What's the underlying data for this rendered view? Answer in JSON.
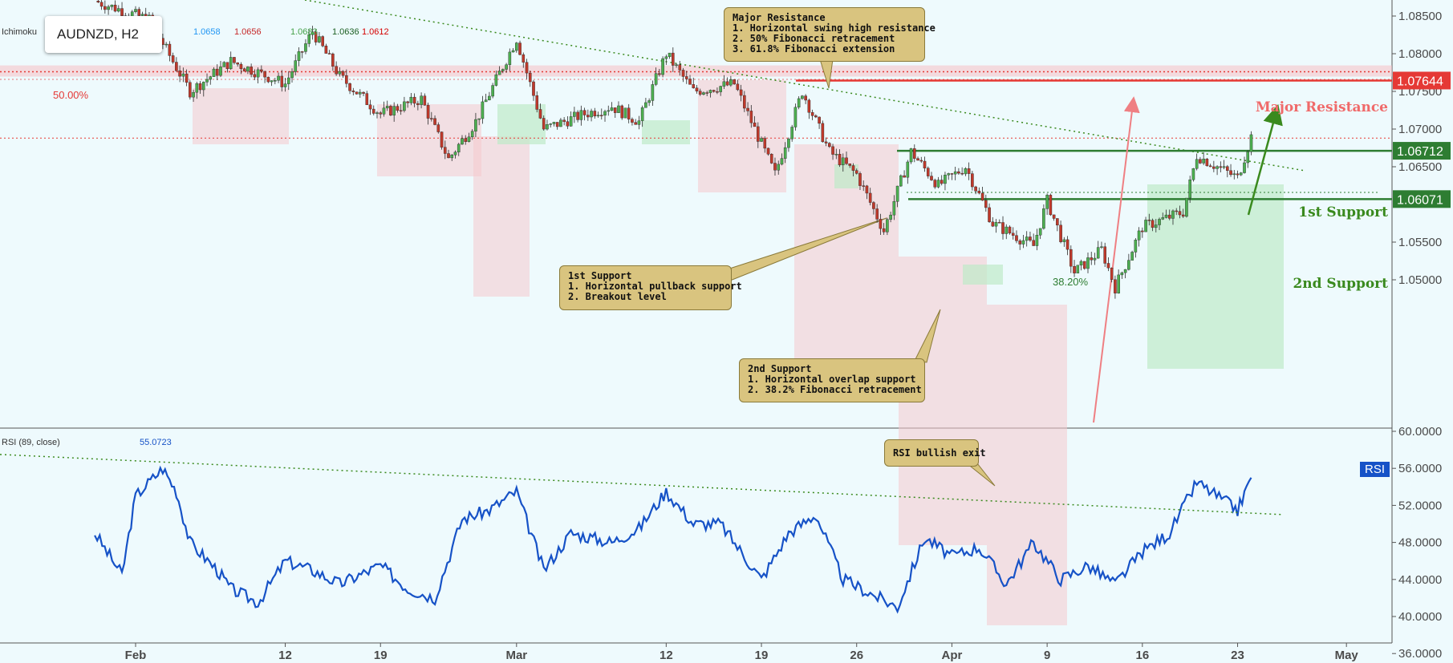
{
  "symbol": "AUDNZD, H2",
  "indicator_label": "Ichimoku",
  "ichimoku_values": [
    {
      "text": "1.0658",
      "color": "#2196f3"
    },
    {
      "text": "1.0656",
      "color": "#c62828"
    },
    {
      "text": "1.0683",
      "color": "#43a047"
    },
    {
      "text": "1.0636",
      "color": "#1b5e20"
    },
    {
      "text": "1.0612",
      "color": "#d50000"
    }
  ],
  "rsi_label": "RSI (89, close)",
  "rsi_value": "55.0723",
  "rsi_tag": "RSI",
  "price_axis": [
    "1.08500",
    "1.08000",
    "1.07500",
    "1.07000",
    "1.06500",
    "1.05500",
    "1.05000"
  ],
  "rsi_axis": [
    "60.0000",
    "56.0000",
    "52.0000",
    "48.0000",
    "44.0000",
    "40.0000",
    "36.0000"
  ],
  "x_axis": [
    "Feb",
    "12",
    "19",
    "Mar",
    "12",
    "19",
    "26",
    "Apr",
    "9",
    "16",
    "23",
    "May"
  ],
  "levels": {
    "major_resistance": {
      "label": "Major Resistance",
      "value": "1.07644",
      "color": "#e53935"
    },
    "first_support": {
      "label": "1st Support",
      "value": "1.06712",
      "color": "#2e7d32"
    },
    "second_support": {
      "label": "2nd Support",
      "value": "1.06071",
      "color": "#2e7d32"
    },
    "fib_50": "50.00%",
    "fib_382": "38.20%"
  },
  "callouts": {
    "major_resistance": [
      "Major Resistance",
      "1. Horizontal swing high resistance",
      "2. 50% Fibonacci retracement",
      "3. 61.8% Fibonacci extension"
    ],
    "first_support": [
      "1st Support",
      "1. Horizontal pullback support",
      "2. Breakout level"
    ],
    "second_support": [
      "2nd Support",
      "1. Horizontal overlap support",
      "2. 38.2% Fibonacci retracement"
    ],
    "rsi": [
      "RSI bullish exit"
    ]
  },
  "chart_data": [
    {
      "type": "candlestick",
      "title": "AUDNZD, H2",
      "ylim": [
        1.0488,
        1.0868
      ],
      "y_ticks": [
        1.085,
        1.08,
        1.075,
        1.07,
        1.065,
        1.055,
        1.05
      ],
      "x_ticks": [
        "Feb",
        "12",
        "19",
        "Mar",
        "12",
        "19",
        "26",
        "Apr",
        "9",
        "16",
        "23",
        "May"
      ],
      "price_path": [
        [
          "Jan 29",
          1.087
        ],
        [
          "Feb 2",
          1.0845
        ],
        [
          "Feb 5",
          1.075
        ],
        [
          "Feb 8",
          1.079
        ],
        [
          "Feb 12",
          1.076
        ],
        [
          "Feb 14",
          1.083
        ],
        [
          "Feb 16",
          1.077
        ],
        [
          "Feb 19",
          1.072
        ],
        [
          "Feb 22",
          1.074
        ],
        [
          "Feb 24",
          1.066
        ],
        [
          "Feb 26",
          1.071
        ],
        [
          "Mar 1",
          1.082
        ],
        [
          "Mar 3",
          1.07
        ],
        [
          "Mar 6",
          1.072
        ],
        [
          "Mar 8",
          1.073
        ],
        [
          "Mar 10",
          1.071
        ],
        [
          "Mar 12",
          1.08
        ],
        [
          "Mar 14",
          1.075
        ],
        [
          "Mar 17",
          1.076
        ],
        [
          "Mar 20",
          1.064
        ],
        [
          "Mar 22",
          1.075
        ],
        [
          "Mar 24",
          1.067
        ],
        [
          "Mar 26",
          1.064
        ],
        [
          "Mar 28",
          1.0565
        ],
        [
          "Mar 30",
          1.067
        ],
        [
          "Apr 1",
          1.0625
        ],
        [
          "Apr 3",
          1.065
        ],
        [
          "Apr 5",
          1.0575
        ],
        [
          "Apr 8",
          1.0545
        ],
        [
          "Apr 9",
          1.0605
        ],
        [
          "Apr 11",
          1.051
        ],
        [
          "Apr 13",
          1.054
        ],
        [
          "Apr 14",
          1.049
        ],
        [
          "Apr 16",
          1.057
        ],
        [
          "Apr 19",
          1.059
        ],
        [
          "Apr 20",
          1.0665
        ],
        [
          "Apr 23",
          1.0635
        ],
        [
          "Apr 24",
          1.069
        ]
      ]
    },
    {
      "type": "line",
      "title": "RSI (89, close)",
      "ylim": [
        34,
        60
      ],
      "y_ticks": [
        60,
        56,
        52,
        48,
        44,
        40,
        36
      ],
      "series": [
        {
          "name": "RSI (89, close)",
          "values": [
            [
              "Jan 29",
              49
            ],
            [
              "Jan 31",
              44.5
            ],
            [
              "Feb 1",
              53
            ],
            [
              "Feb 3",
              56
            ],
            [
              "Feb 4",
              53.5
            ],
            [
              "Feb 5",
              48
            ],
            [
              "Feb 7",
              45
            ],
            [
              "Feb 8",
              43
            ],
            [
              "Feb 10",
              41.5
            ],
            [
              "Feb 12",
              46
            ],
            [
              "Feb 14",
              45
            ],
            [
              "Feb 16",
              43.5
            ],
            [
              "Feb 19",
              45.5
            ],
            [
              "Feb 21",
              43
            ],
            [
              "Feb 23",
              42
            ],
            [
              "Feb 25",
              50.5
            ],
            [
              "Feb 27",
              51.5
            ],
            [
              "Mar 1",
              53.5
            ],
            [
              "Mar 3",
              45
            ],
            [
              "Mar 5",
              49
            ],
            [
              "Mar 8",
              48
            ],
            [
              "Mar 10",
              49.5
            ],
            [
              "Mar 12",
              53.5
            ],
            [
              "Mar 14",
              50
            ],
            [
              "Mar 16",
              50
            ],
            [
              "Mar 19",
              44
            ],
            [
              "Mar 21",
              49
            ],
            [
              "Mar 23",
              51
            ],
            [
              "Mar 25",
              44
            ],
            [
              "Mar 27",
              42.5
            ],
            [
              "Mar 29",
              41
            ],
            [
              "Mar 31",
              48.5
            ],
            [
              "Apr 2",
              46.5
            ],
            [
              "Apr 4",
              47.5
            ],
            [
              "Apr 6",
              43.5
            ],
            [
              "Apr 8",
              48
            ],
            [
              "Apr 10",
              44
            ],
            [
              "Apr 12",
              45.5
            ],
            [
              "Apr 14",
              43.5
            ],
            [
              "Apr 16",
              47
            ],
            [
              "Apr 18",
              49
            ],
            [
              "Apr 20",
              54.5
            ],
            [
              "Apr 22",
              52.5
            ],
            [
              "Apr 23",
              51.5
            ],
            [
              "Apr 24",
              55
            ]
          ]
        }
      ]
    }
  ]
}
